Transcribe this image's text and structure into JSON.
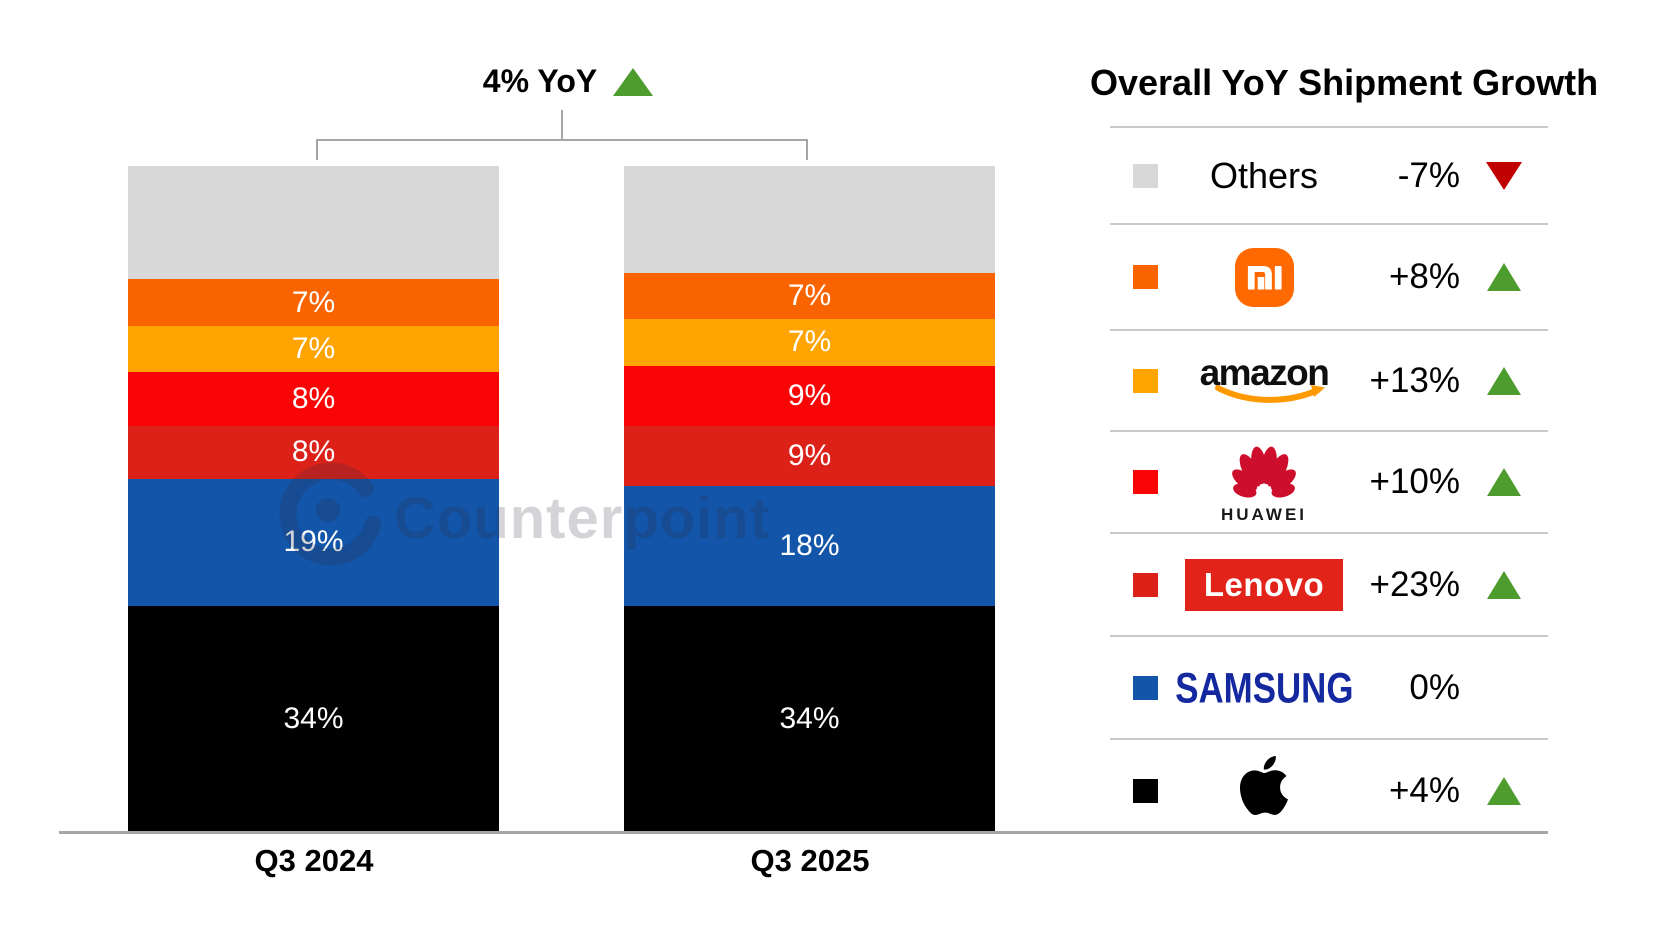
{
  "title": {
    "text": "4% YoY",
    "direction": "up"
  },
  "watermark": {
    "text": "Counterpoint"
  },
  "chart_data": {
    "type": "bar",
    "subtype": "stacked-100-percent",
    "title": "4% YoY",
    "overall_growth": {
      "label": "4% YoY",
      "direction": "up"
    },
    "categories": [
      "Q3 2024",
      "Q3 2025"
    ],
    "unit": "% share of shipments",
    "ylim": [
      0,
      100
    ],
    "grid": false,
    "legend_position": "right",
    "series_bottom_to_top": [
      {
        "name": "Apple",
        "color": "#000000",
        "values": [
          34,
          34
        ],
        "show_label": true
      },
      {
        "name": "Samsung",
        "color": "#1355A9",
        "values": [
          19,
          18
        ],
        "show_label": true
      },
      {
        "name": "Lenovo",
        "color": "#DC2119",
        "values": [
          8,
          9
        ],
        "show_label": true
      },
      {
        "name": "Huawei",
        "color": "#FA0505",
        "values": [
          8,
          9
        ],
        "show_label": true
      },
      {
        "name": "Amazon",
        "color": "#FFA400",
        "values": [
          7,
          7
        ],
        "show_label": true
      },
      {
        "name": "Xiaomi",
        "color": "#FA6400",
        "values": [
          7,
          7
        ],
        "show_label": true
      },
      {
        "name": "Others",
        "color": "#D8D8D8",
        "values": [
          17,
          16
        ],
        "show_label": false
      }
    ]
  },
  "legend": {
    "header": "Overall YoY Shipment Growth",
    "rows": [
      {
        "brand": "Others",
        "swatch": "#D8D8D8",
        "growth": "-7%",
        "direction": "down"
      },
      {
        "brand": "Xiaomi",
        "swatch": "#FA6400",
        "growth": "+8%",
        "direction": "up"
      },
      {
        "brand": "Amazon",
        "swatch": "#FFA400",
        "growth": "+13%",
        "direction": "up"
      },
      {
        "brand": "Huawei",
        "swatch": "#FA0505",
        "growth": "+10%",
        "direction": "up"
      },
      {
        "brand": "Lenovo",
        "swatch": "#DC2119",
        "growth": "+23%",
        "direction": "up"
      },
      {
        "brand": "Samsung",
        "swatch": "#1355A9",
        "growth": "0%",
        "direction": "none"
      },
      {
        "brand": "Apple",
        "swatch": "#000000",
        "growth": "+4%",
        "direction": "up"
      }
    ],
    "logo_text": {
      "others": "Others",
      "xiaomi_monogram": "mi",
      "amazon": "amazon",
      "huawei": "HUAWEI",
      "lenovo": "Lenovo",
      "samsung": "SAMSUNG"
    }
  },
  "colors": {
    "up": "#4E9C2E",
    "down": "#C00000",
    "axis": "#A6A6A6",
    "divider": "#C9C9C9",
    "xiaomi_logo": "#FF6900",
    "amazon_smile": "#FF9900",
    "huawei_red": "#CE0E2D",
    "lenovo_red": "#E2231A",
    "samsung_blue": "#1428A0"
  }
}
